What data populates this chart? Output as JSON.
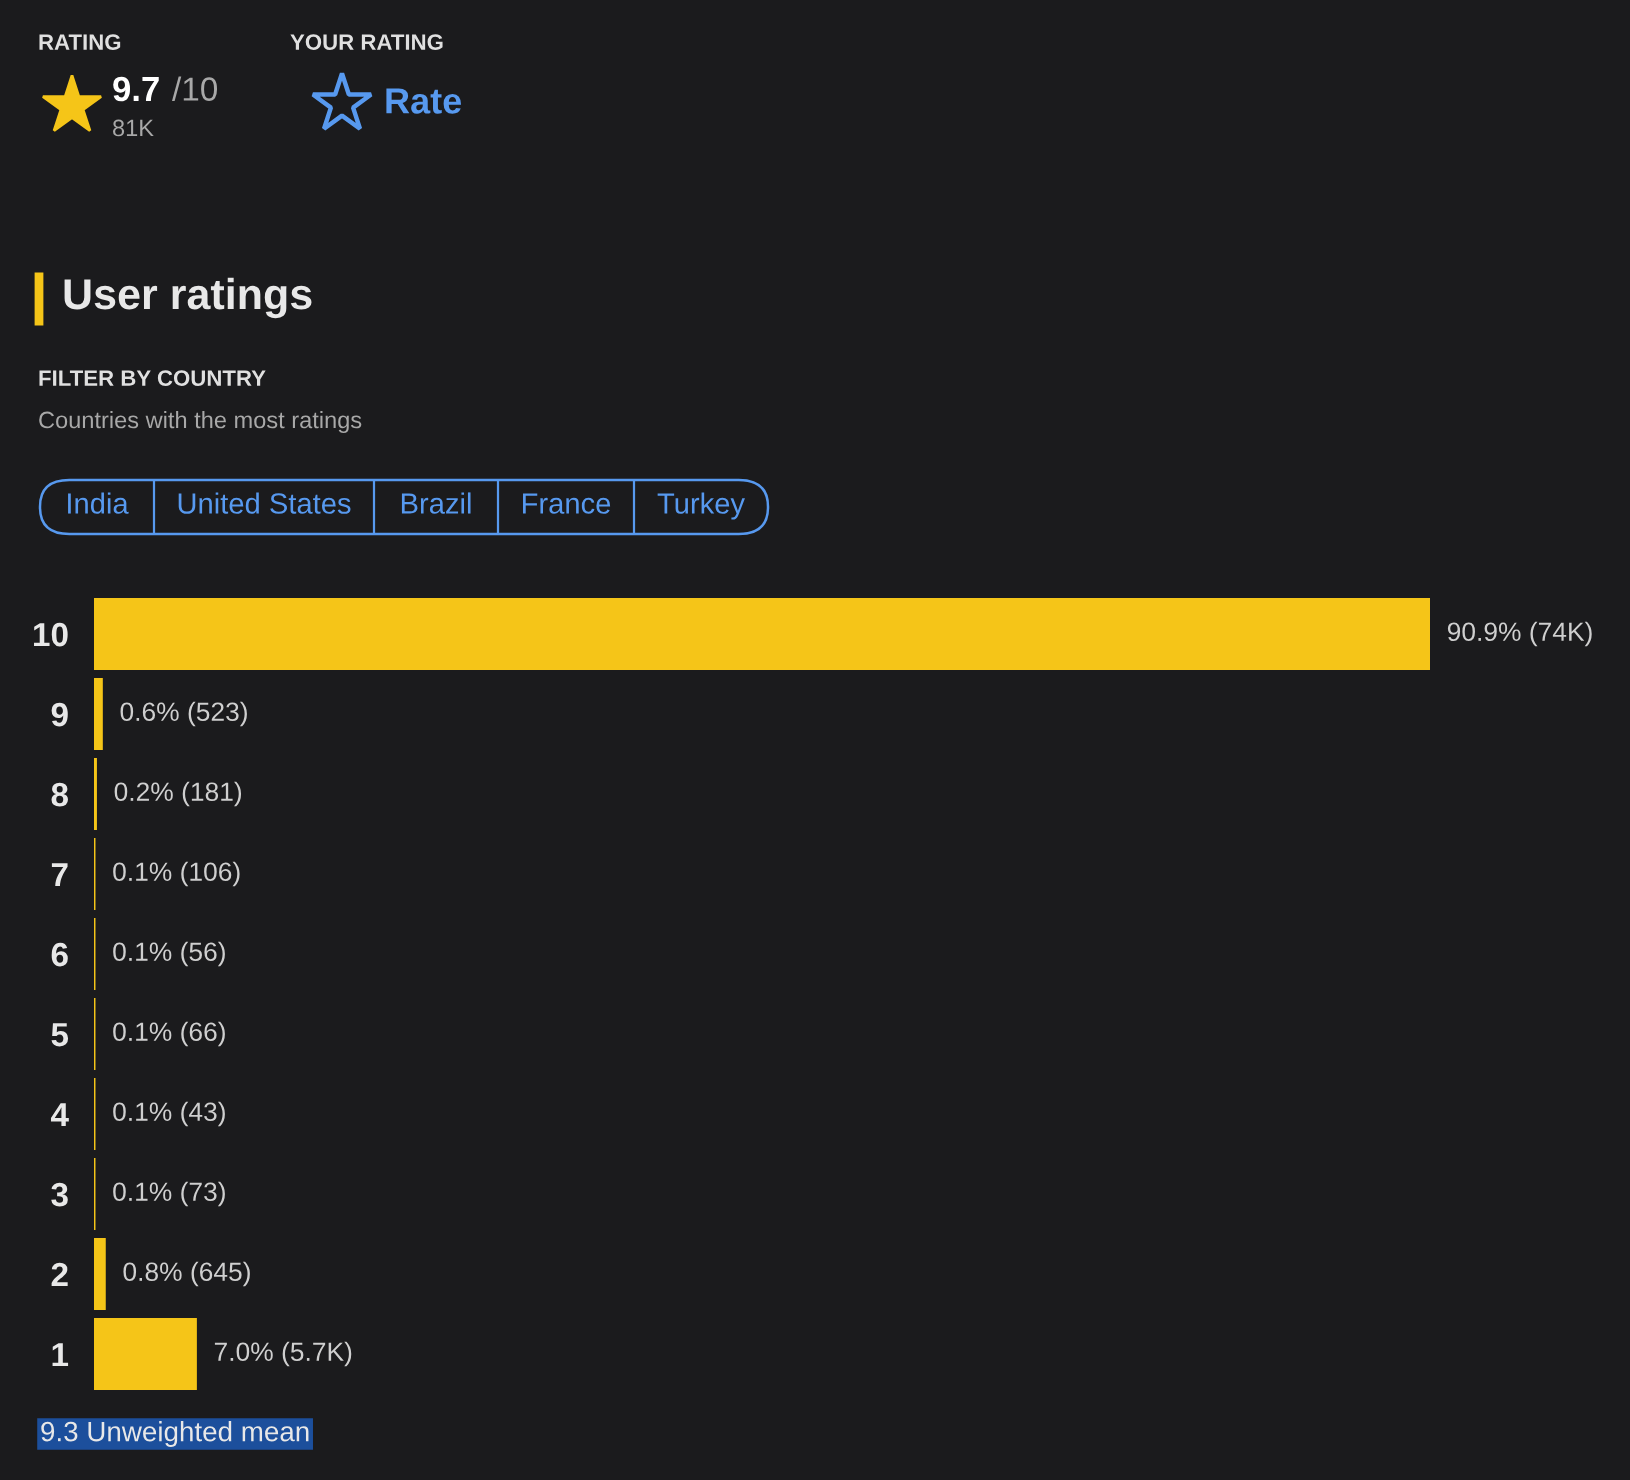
{
  "chart_data": {
    "type": "bar",
    "orientation": "horizontal",
    "title": "User ratings",
    "categories": [
      "10",
      "9",
      "8",
      "7",
      "6",
      "5",
      "4",
      "3",
      "2",
      "1"
    ],
    "values": [
      90.9,
      0.6,
      0.2,
      0.1,
      0.1,
      0.1,
      0.1,
      0.1,
      0.8,
      7.0
    ],
    "value_labels": [
      "90.9% (74K)",
      "0.6% (523)",
      "0.2% (181)",
      "0.1% (106)",
      "0.1% (56)",
      "0.1% (66)",
      "0.1% (43)",
      "0.1% (73)",
      "0.8% (645)",
      "7.0% (5.7K)"
    ],
    "color": "#f5c518",
    "annotations": [
      "RATING",
      "9.7",
      "/10",
      "81K",
      "YOUR RATING",
      "Rate",
      "FILTER BY COUNTRY",
      "Countries with the most ratings",
      "India",
      "United States",
      "Brazil",
      "France",
      "Turkey",
      "9.3 Unweighted mean"
    ]
  }
}
